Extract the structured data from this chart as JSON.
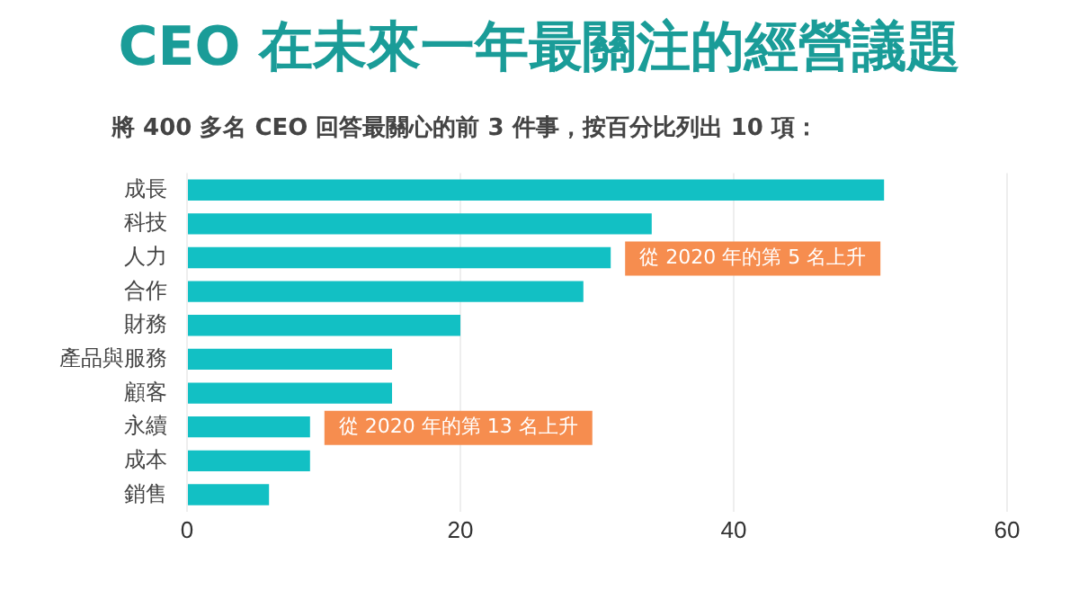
{
  "chart_data": {
    "type": "bar",
    "orientation": "horizontal",
    "title": "CEO 在未來一年最關注的經營議題",
    "subtitle": "將 400 多名 CEO 回答最關心的前 3 件事，按百分比列出 10 項：",
    "categories": [
      "成長",
      "科技",
      "人力",
      "合作",
      "財務",
      "產品與服務",
      "顧客",
      "永續",
      "成本",
      "銷售"
    ],
    "values": [
      51,
      34,
      31,
      29,
      20,
      15,
      15,
      9,
      9,
      6
    ],
    "color": "#12c0c4",
    "xlim": [
      0,
      60
    ],
    "xticks": [
      0,
      20,
      40,
      60
    ],
    "grid": "x",
    "annotations": [
      {
        "text": "從 2020 年的第 5 名上升",
        "x": 31,
        "y": "人力"
      },
      {
        "text": "從 2020 年的第 13 名上升",
        "x": 9,
        "y": "永續"
      }
    ]
  }
}
